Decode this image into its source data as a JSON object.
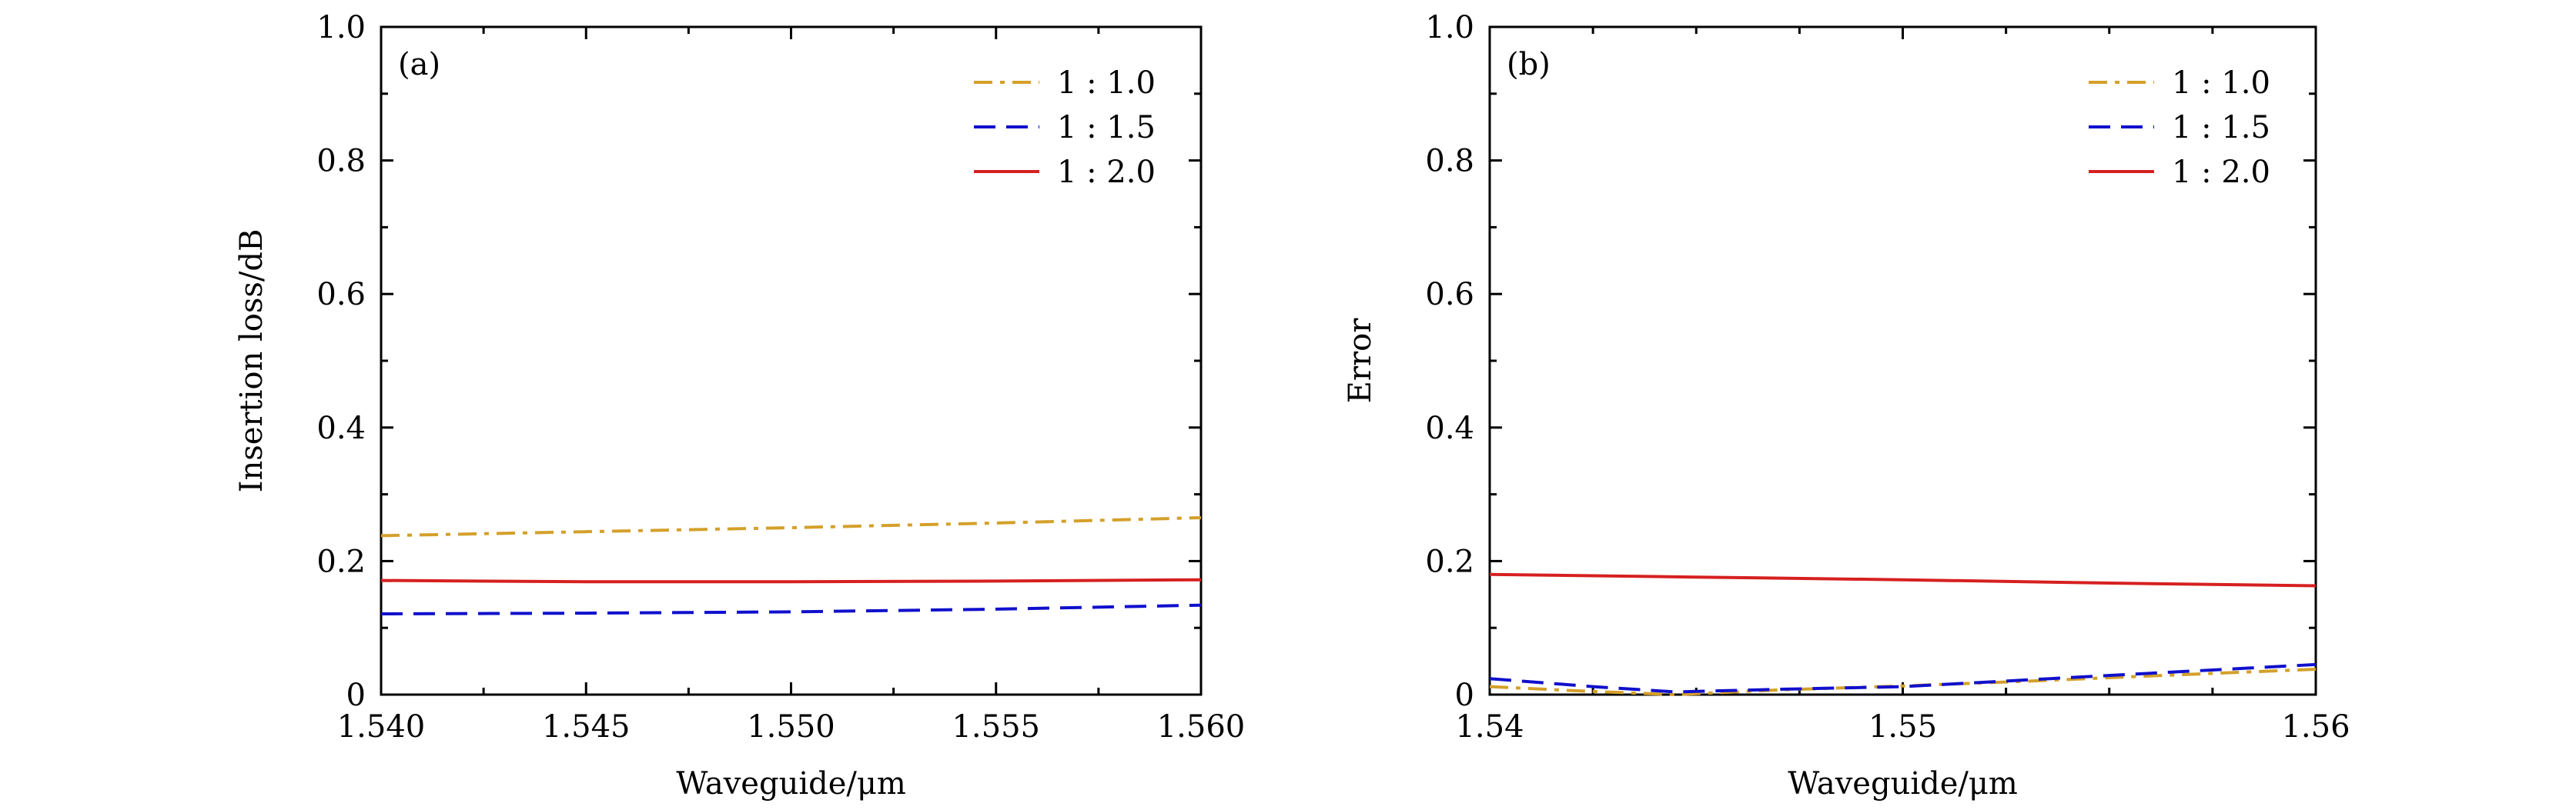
{
  "colors": {
    "c10": "#D4A02B",
    "c15": "#1010CC",
    "c20": "#D62020"
  },
  "chart_data": [
    {
      "type": "line",
      "panel_label": "(a)",
      "xlabel": "Waveguide/μm",
      "ylabel": "Insertion loss/dB",
      "xlim": [
        1.54,
        1.56
      ],
      "ylim": [
        0,
        1.0
      ],
      "xticks": [
        1.54,
        1.545,
        1.55,
        1.555,
        1.56
      ],
      "xtick_labels": [
        "1.540",
        "1.545",
        "1.550",
        "1.555",
        "1.560"
      ],
      "yticks": [
        0,
        0.2,
        0.4,
        0.6,
        0.8,
        1.0
      ],
      "ytick_labels": [
        "0",
        "0.2",
        "0.4",
        "0.6",
        "0.8",
        "1.0"
      ],
      "legend_position": "top-right",
      "series": [
        {
          "name": "1 : 1.0",
          "style": "dashdot",
          "color": "#D4A02B",
          "x": [
            1.54,
            1.545,
            1.55,
            1.555,
            1.56
          ],
          "y": [
            0.238,
            0.244,
            0.25,
            0.257,
            0.265
          ]
        },
        {
          "name": "1 : 1.5",
          "style": "dashed",
          "color": "#1010CC",
          "x": [
            1.54,
            1.545,
            1.55,
            1.555,
            1.56
          ],
          "y": [
            0.121,
            0.122,
            0.124,
            0.128,
            0.134
          ]
        },
        {
          "name": "1 : 2.0",
          "style": "solid",
          "color": "#D62020",
          "x": [
            1.54,
            1.545,
            1.55,
            1.555,
            1.56
          ],
          "y": [
            0.171,
            0.169,
            0.169,
            0.17,
            0.172
          ]
        }
      ]
    },
    {
      "type": "line",
      "panel_label": "(b)",
      "xlabel": "Waveguide/μm",
      "ylabel": "Error",
      "xlim": [
        1.54,
        1.56
      ],
      "ylim": [
        0,
        1.0
      ],
      "xticks": [
        1.54,
        1.55,
        1.56
      ],
      "xtick_labels": [
        "1.54",
        "1.55",
        "1.56"
      ],
      "yticks": [
        0,
        0.2,
        0.4,
        0.6,
        0.8,
        1.0
      ],
      "ytick_labels": [
        "0",
        "0.2",
        "0.4",
        "0.6",
        "0.8",
        "1.0"
      ],
      "legend_position": "top-right",
      "series": [
        {
          "name": "1 : 1.0",
          "style": "dashdot",
          "color": "#D4A02B",
          "x": [
            1.54,
            1.542,
            1.5445,
            1.547,
            1.55,
            1.553,
            1.556,
            1.56
          ],
          "y": [
            0.012,
            0.006,
            0.0,
            0.007,
            0.013,
            0.02,
            0.028,
            0.038
          ]
        },
        {
          "name": "1 : 1.5",
          "style": "dashed",
          "color": "#1010CC",
          "x": [
            1.54,
            1.5425,
            1.5445,
            1.547,
            1.55,
            1.553,
            1.556,
            1.56
          ],
          "y": [
            0.024,
            0.012,
            0.004,
            0.008,
            0.012,
            0.022,
            0.032,
            0.045
          ]
        },
        {
          "name": "1 : 2.0",
          "style": "solid",
          "color": "#D62020",
          "x": [
            1.54,
            1.545,
            1.55,
            1.555,
            1.56
          ],
          "y": [
            0.18,
            0.176,
            0.172,
            0.167,
            0.163
          ]
        }
      ]
    }
  ]
}
